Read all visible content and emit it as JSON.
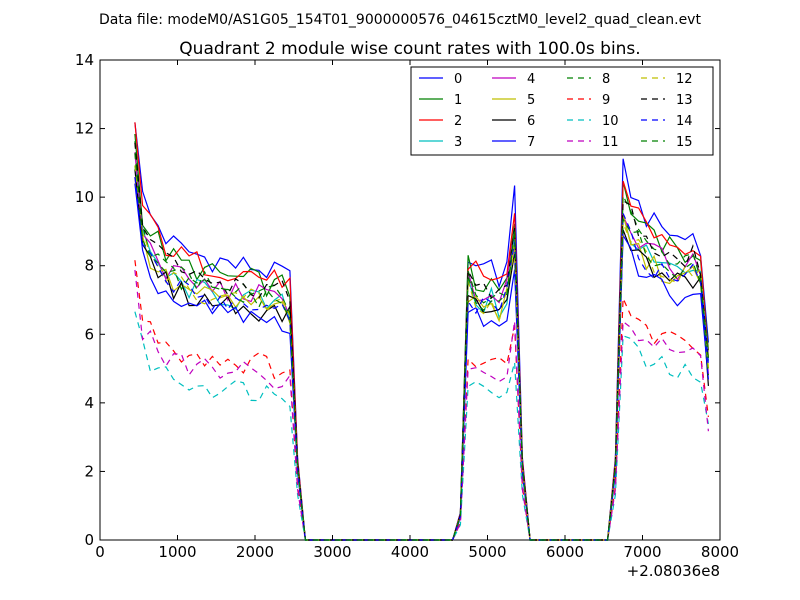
{
  "suptitle": "Data file: modeM0/AS1G05_154T01_9000000576_04615cztM0_level2_quad_clean.evt",
  "chart_data": {
    "type": "line",
    "title": "Quadrant 2 module wise count rates with 100.0s bins.",
    "xlabel": "",
    "ylabel": "",
    "x_offset_label": "+2.08036e8",
    "xlim": [
      0,
      8000
    ],
    "ylim": [
      0,
      14
    ],
    "xticks": [
      0,
      1000,
      2000,
      3000,
      4000,
      5000,
      6000,
      7000,
      8000
    ],
    "yticks": [
      0,
      2,
      4,
      6,
      8,
      10,
      12,
      14
    ],
    "xtick_labels": [
      "0",
      "1000",
      "2000",
      "3000",
      "4000",
      "5000",
      "6000",
      "7000",
      "8000"
    ],
    "ytick_labels": [
      "0",
      "2",
      "4",
      "6",
      "8",
      "10",
      "12",
      "14"
    ],
    "legend_position": "top-right",
    "series": [
      {
        "name": "0",
        "color": "#0000ff",
        "dash": "solid",
        "level": 8.0,
        "values": {
          "seg1": [
            9.5,
            9.0,
            8.8,
            8.5,
            8.7,
            8.3,
            8.2
          ],
          "start1": 12.7,
          "seg2": [
            8.1,
            8.2,
            8.3
          ],
          "seg3": [
            10.5,
            9.5,
            9.2
          ]
        }
      },
      {
        "name": "1",
        "color": "#008000",
        "dash": "solid",
        "level": 7.6
      },
      {
        "name": "2",
        "color": "#ff0000",
        "dash": "solid",
        "level": 7.8
      },
      {
        "name": "3",
        "color": "#00bfbf",
        "dash": "solid",
        "level": 7.0
      },
      {
        "name": "4",
        "color": "#bf00bf",
        "dash": "solid",
        "level": 7.2
      },
      {
        "name": "5",
        "color": "#bfbf00",
        "dash": "solid",
        "level": 6.9
      },
      {
        "name": "6",
        "color": "#000000",
        "dash": "solid",
        "level": 6.8
      },
      {
        "name": "7",
        "color": "#0000ff",
        "dash": "solid",
        "level": 6.5
      },
      {
        "name": "8",
        "color": "#008000",
        "dash": "dashed",
        "level": 7.3
      },
      {
        "name": "9",
        "color": "#ff0000",
        "dash": "dashed",
        "level": 5.2
      },
      {
        "name": "10",
        "color": "#00bfbf",
        "dash": "dashed",
        "level": 4.4
      },
      {
        "name": "11",
        "color": "#bf00bf",
        "dash": "dashed",
        "level": 4.9
      },
      {
        "name": "12",
        "color": "#bfbf00",
        "dash": "dashed",
        "level": 7.0
      },
      {
        "name": "13",
        "color": "#000000",
        "dash": "dashed",
        "level": 7.4
      },
      {
        "name": "14",
        "color": "#0000ff",
        "dash": "dashed",
        "level": 6.9
      },
      {
        "name": "15",
        "color": "#008000",
        "dash": "dashed",
        "level": 7.1
      }
    ],
    "time_profile": {
      "x": [
        450,
        550,
        650,
        750,
        850,
        950,
        1050,
        1150,
        1250,
        1350,
        1450,
        1550,
        1650,
        1750,
        1850,
        1950,
        2050,
        2150,
        2250,
        2350,
        2450,
        2550,
        2650,
        2750,
        2850,
        2950,
        3050,
        3150,
        3250,
        3350,
        3450,
        3550,
        3650,
        3750,
        3850,
        3950,
        4050,
        4150,
        4250,
        4350,
        4450,
        4550,
        4650,
        4750,
        4850,
        4950,
        5050,
        5150,
        5250,
        5350,
        5450,
        5550,
        5650,
        5750,
        5850,
        5950,
        6050,
        6150,
        6250,
        6350,
        6450,
        6550,
        6650,
        6750,
        6850,
        6950,
        7050,
        7150,
        7250,
        7350,
        7450,
        7550,
        7650,
        7750,
        7850
      ],
      "factor": [
        1.55,
        1.25,
        1.18,
        1.15,
        1.1,
        1.08,
        1.06,
        1.05,
        1.04,
        1.03,
        1.02,
        1.02,
        1.01,
        1.0,
        1.0,
        1.0,
        0.99,
        0.98,
        0.97,
        0.98,
        0.95,
        0.3,
        0.0,
        0.0,
        0.0,
        0.0,
        0.0,
        0.0,
        0.0,
        0.0,
        0.0,
        0.0,
        0.0,
        0.0,
        0.0,
        0.0,
        0.0,
        0.0,
        0.0,
        0.0,
        0.0,
        0.0,
        0.1,
        1.05,
        1.0,
        0.98,
        1.0,
        0.96,
        1.02,
        1.25,
        0.3,
        0.0,
        0.0,
        0.0,
        0.0,
        0.0,
        0.0,
        0.0,
        0.0,
        0.0,
        0.0,
        0.0,
        0.3,
        1.35,
        1.28,
        1.22,
        1.18,
        1.15,
        1.14,
        1.12,
        1.1,
        1.1,
        1.12,
        1.08,
        0.7
      ]
    }
  }
}
